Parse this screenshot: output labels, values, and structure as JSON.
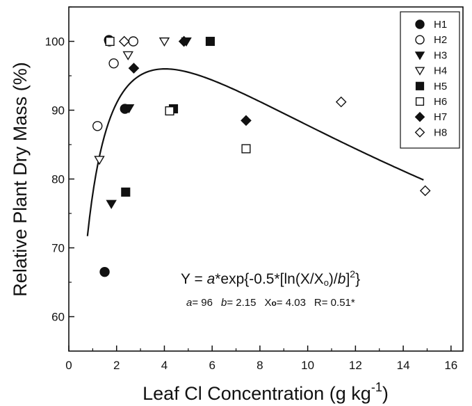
{
  "chart_data": {
    "type": "scatter",
    "xlabel": "Leaf Cl Concentration (g kg",
    "xlabel_sup": "-1",
    "xlabel_end": ")",
    "ylabel": "Relative Plant Dry Mass (%)",
    "xlim": [
      0,
      16.5
    ],
    "ylim": [
      55,
      105
    ],
    "xticks": [
      0,
      2,
      4,
      6,
      8,
      10,
      12,
      14,
      16
    ],
    "yticks": [
      60,
      70,
      80,
      90,
      100
    ],
    "grid": false,
    "legend_position": "top-right",
    "series": [
      {
        "name": "H1",
        "marker": "circle",
        "filled": true,
        "points": [
          [
            1.5,
            66.5
          ],
          [
            2.35,
            90.2
          ],
          [
            1.68,
            100.2
          ]
        ]
      },
      {
        "name": "H2",
        "marker": "circle",
        "filled": false,
        "points": [
          [
            1.2,
            87.7
          ],
          [
            1.88,
            96.8
          ],
          [
            2.7,
            100.0
          ],
          [
            1.7,
            100.0
          ]
        ]
      },
      {
        "name": "H3",
        "marker": "triangle-down",
        "filled": true,
        "points": [
          [
            1.78,
            76.4
          ],
          [
            2.52,
            90.3
          ],
          [
            4.92,
            100.0
          ]
        ]
      },
      {
        "name": "H4",
        "marker": "triangle-down",
        "filled": false,
        "points": [
          [
            1.28,
            82.8
          ],
          [
            2.48,
            98.0
          ],
          [
            4.0,
            100.0
          ]
        ]
      },
      {
        "name": "H5",
        "marker": "square",
        "filled": true,
        "points": [
          [
            2.38,
            78.1
          ],
          [
            4.38,
            90.2
          ],
          [
            5.92,
            100.0
          ]
        ]
      },
      {
        "name": "H6",
        "marker": "square",
        "filled": false,
        "points": [
          [
            1.72,
            100.0
          ],
          [
            4.22,
            89.9
          ],
          [
            7.42,
            84.4
          ]
        ]
      },
      {
        "name": "H7",
        "marker": "diamond",
        "filled": true,
        "points": [
          [
            2.72,
            96.1
          ],
          [
            4.82,
            100.0
          ],
          [
            7.42,
            88.5
          ]
        ]
      },
      {
        "name": "H8",
        "marker": "diamond",
        "filled": false,
        "points": [
          [
            2.32,
            100.0
          ],
          [
            11.4,
            91.2
          ],
          [
            14.92,
            78.3
          ]
        ]
      }
    ],
    "fit": {
      "type": "log-normal",
      "a": 96,
      "b": 2.15,
      "x0": 4.03,
      "x_range": [
        0.78,
        14.85
      ],
      "equation_y_prefix": "Y = ",
      "equation_a": "a",
      "equation_mid": "*exp{-0.5*[ln(X/X",
      "equation_o": "o",
      "equation_mid2": ")/",
      "equation_b": "b",
      "equation_end": "]",
      "equation_sup": "2",
      "equation_close": "}",
      "stats": {
        "a_label": "a",
        "a_value": "= 96",
        "b_label": "b",
        "b_value": "= 2.15",
        "x_label": "X",
        "x_sub": "o",
        "x_value": "= 4.03",
        "r_text": "R= 0.51*"
      }
    }
  }
}
